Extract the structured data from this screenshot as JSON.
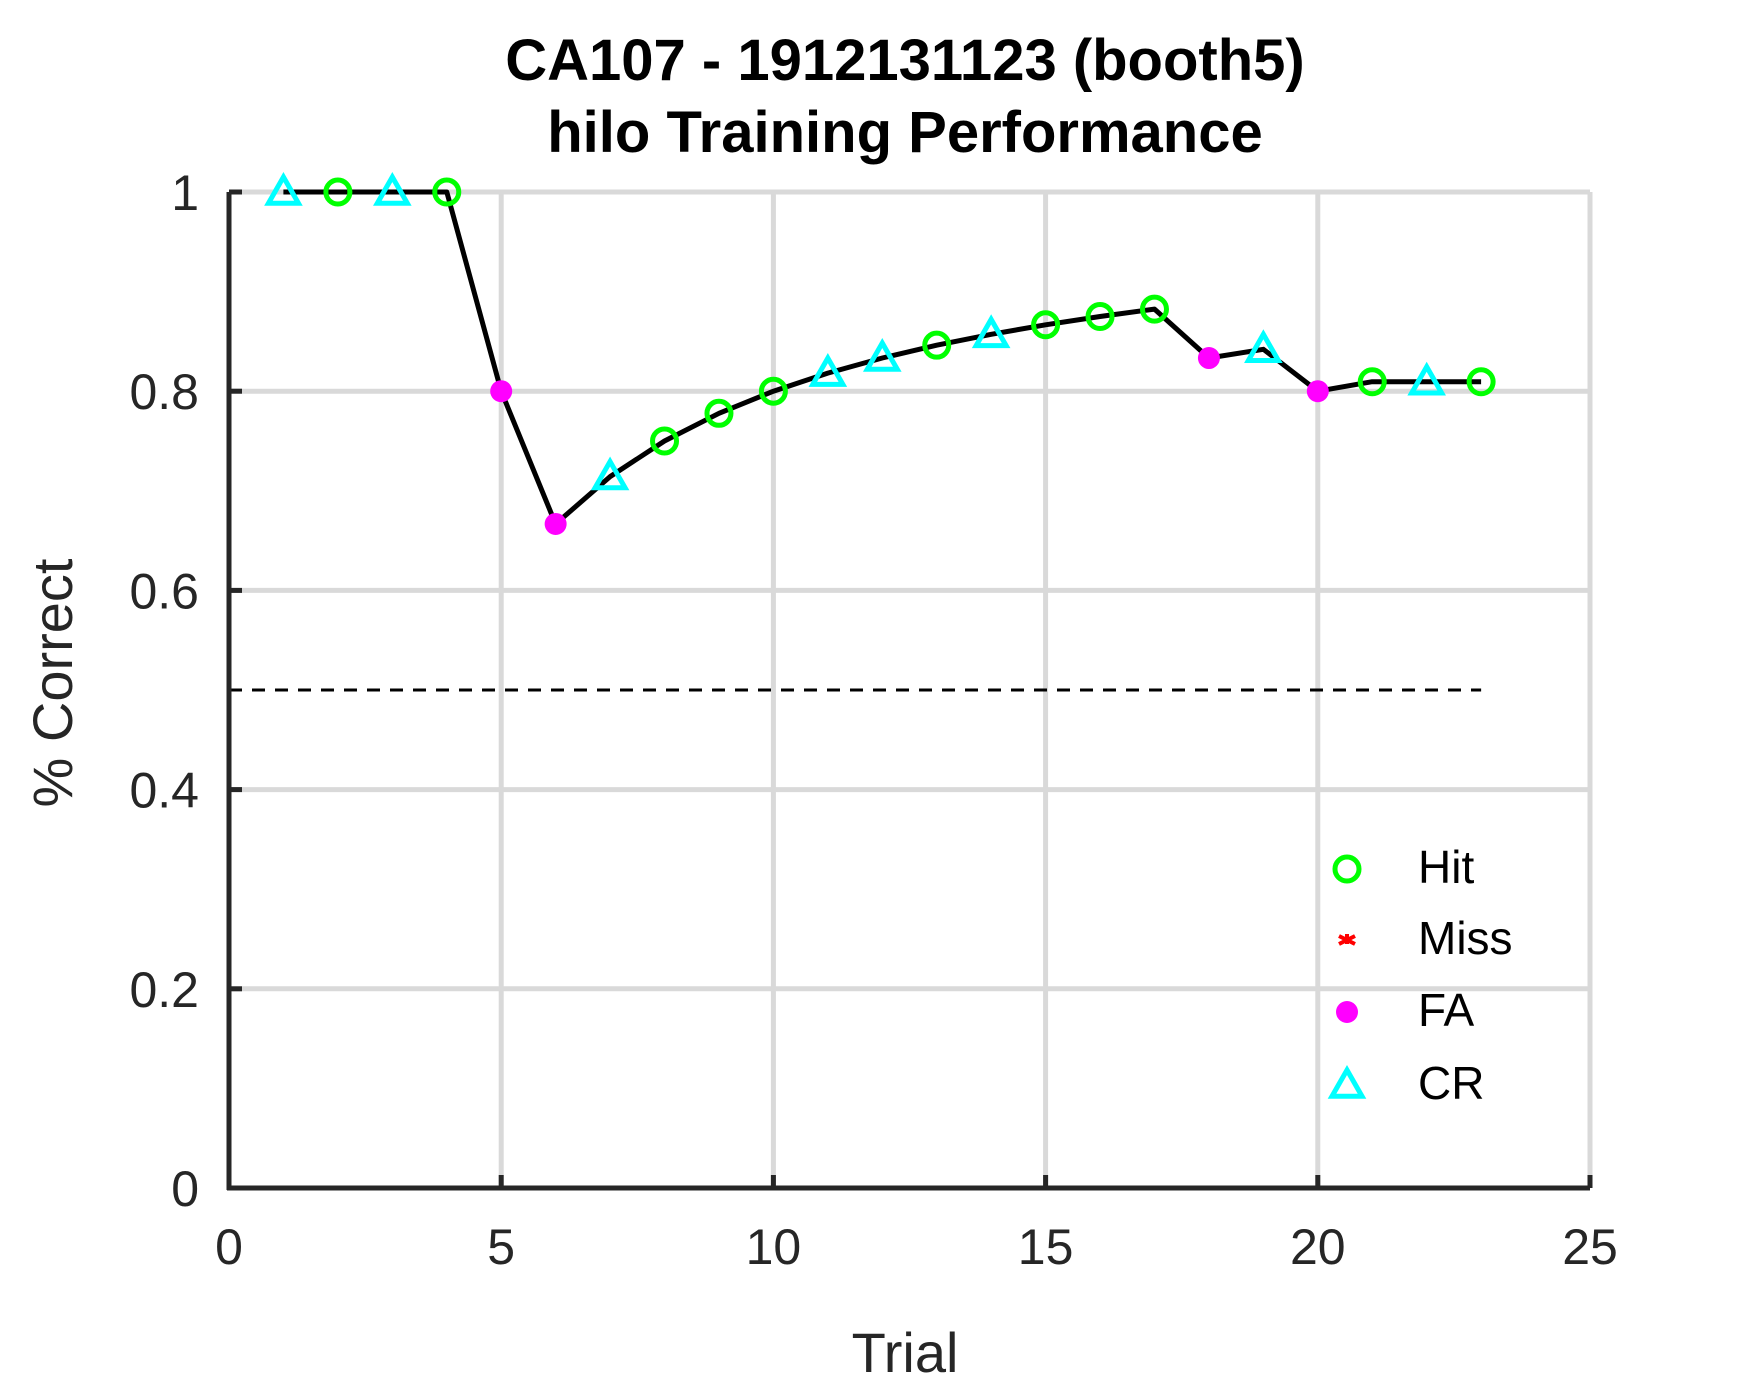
{
  "chart_data": {
    "type": "line",
    "title": "CA107 - 1912131123 (booth5)",
    "subtitle": "hilo Training Performance",
    "xlabel": "Trial",
    "ylabel": "% Correct",
    "xlim": [
      0,
      25
    ],
    "ylim": [
      0,
      1
    ],
    "x_ticks": [
      0,
      5,
      10,
      15,
      20,
      25
    ],
    "y_ticks": [
      0,
      0.2,
      0.4,
      0.6,
      0.8,
      1
    ],
    "y_tick_labels": [
      "0",
      "0.2",
      "0.4",
      "0.6",
      "0.8",
      "1"
    ],
    "grid": true,
    "chance_line": {
      "y": 0.5,
      "x_range": [
        0,
        23
      ],
      "style": "dashed",
      "color": "#000000"
    },
    "x": [
      1,
      2,
      3,
      4,
      5,
      6,
      7,
      8,
      9,
      10,
      11,
      12,
      13,
      14,
      15,
      16,
      17,
      18,
      19,
      20,
      21,
      22,
      23
    ],
    "y": [
      1,
      1,
      1,
      1,
      0.8,
      0.6667,
      0.7143,
      0.75,
      0.7778,
      0.8,
      0.8182,
      0.8333,
      0.8462,
      0.8571,
      0.8667,
      0.875,
      0.8824,
      0.8333,
      0.8421,
      0.8,
      0.8095,
      0.8095,
      0.8095
    ],
    "outcomes": [
      "CR",
      "Hit",
      "CR",
      "Hit",
      "FA",
      "FA",
      "CR",
      "Hit",
      "Hit",
      "Hit",
      "CR",
      "CR",
      "Hit",
      "CR",
      "Hit",
      "Hit",
      "Hit",
      "FA",
      "CR",
      "FA",
      "Hit",
      "CR",
      "Hit"
    ],
    "line_color": "#000000",
    "legend": {
      "placement": "bottom-right",
      "entries": [
        {
          "name": "Hit",
          "marker": "circle",
          "color": "#00ff00"
        },
        {
          "name": "Miss",
          "marker": "star",
          "color": "#ff0000"
        },
        {
          "name": "FA",
          "marker": "filled-dot",
          "color": "#ff00ff"
        },
        {
          "name": "CR",
          "marker": "triangle",
          "color": "#00ffff"
        }
      ]
    }
  }
}
